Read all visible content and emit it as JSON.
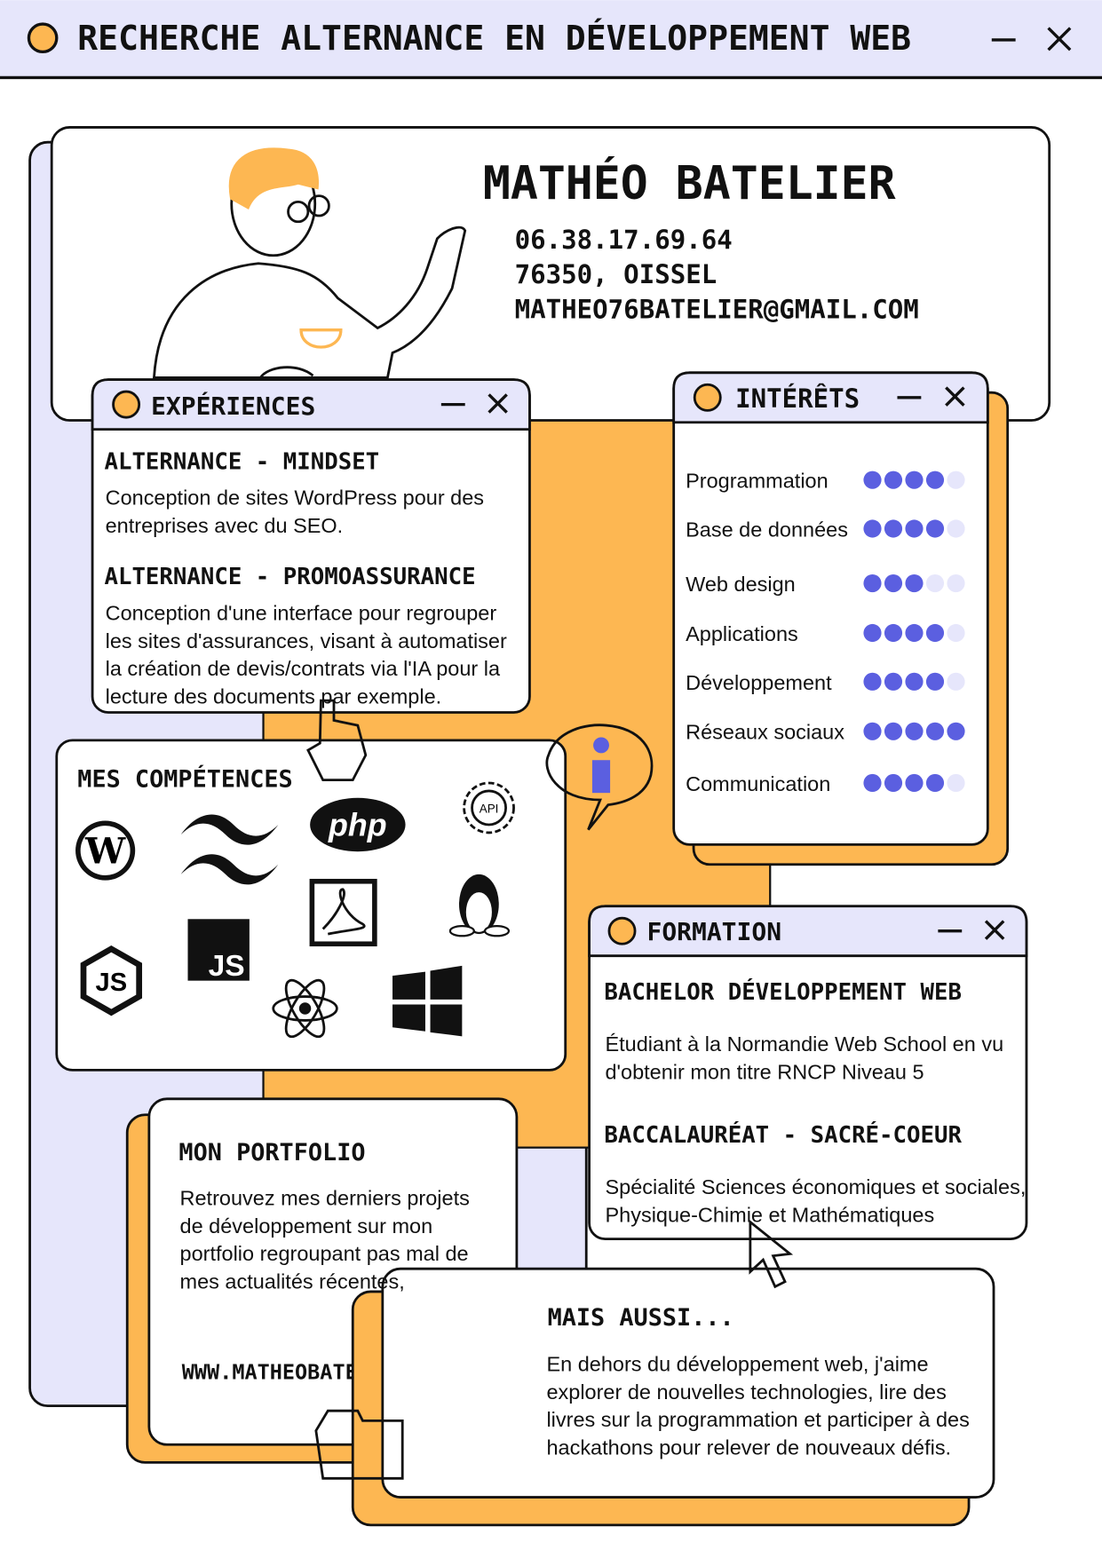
{
  "window": {
    "title": "RECHERCHE ALTERNANCE EN DÉVELOPPEMENT WEB"
  },
  "profile": {
    "name": "MATHÉO BATELIER",
    "phone": "06.38.17.69.64",
    "location": "76350, OISSEL",
    "email": "MATHEO76BATELIER@GMAIL.COM"
  },
  "experiences": {
    "title": "EXPÉRIENCES",
    "items": [
      {
        "title": "ALTERNANCE - MINDSET",
        "lines": [
          "Conception de sites WordPress pour des",
          "entreprises avec du SEO."
        ]
      },
      {
        "title": "ALTERNANCE - PROMOASSURANCE",
        "lines": [
          "Conception d'une interface pour regrouper",
          "les sites d'assurances, visant à automatiser",
          "la création de devis/contrats via l'IA pour la",
          "lecture des documents par exemple."
        ]
      }
    ]
  },
  "interests": {
    "title": "INTÉRÊTS",
    "max_level": 5,
    "items": [
      {
        "name": "Programmation",
        "level": 4
      },
      {
        "name": "Base de données",
        "level": 4
      },
      {
        "name": "Web design",
        "level": 3
      },
      {
        "name": "Applications",
        "level": 4
      },
      {
        "name": "Développement",
        "level": 4
      },
      {
        "name": "Réseaux sociaux",
        "level": 5
      },
      {
        "name": "Communication",
        "level": 4
      }
    ]
  },
  "skills": {
    "title": "MES COMPÉTENCES",
    "icon_labels": [
      "php",
      "API",
      "JS",
      "JS"
    ]
  },
  "education": {
    "title": "FORMATION",
    "items": [
      {
        "title": "BACHELOR DÉVELOPPEMENT WEB",
        "lines": [
          "Étudiant à la Normandie Web School en vu",
          "d'obtenir mon titre RNCP Niveau 5"
        ]
      },
      {
        "title": "BACCALAURÉAT - SACRÉ-COEUR",
        "lines": [
          "Spécialité Sciences économiques et sociales,",
          "Physique-Chimie et Mathématiques"
        ]
      }
    ]
  },
  "portfolio": {
    "title": "MON PORTFOLIO",
    "lines": [
      "Retrouvez mes derniers projets",
      "de développement sur mon",
      "portfolio regroupant pas mal de",
      "mes actualités récentes,"
    ],
    "url": "WWW.MATHEOBATELIER.FR"
  },
  "more": {
    "title": "MAIS AUSSI...",
    "lines": [
      "En dehors du développement web, j'aime",
      "explorer de nouvelles technologies, lire des",
      "livres sur la programmation et participer à des",
      "hackathons pour relever de nouveaux défis."
    ]
  }
}
